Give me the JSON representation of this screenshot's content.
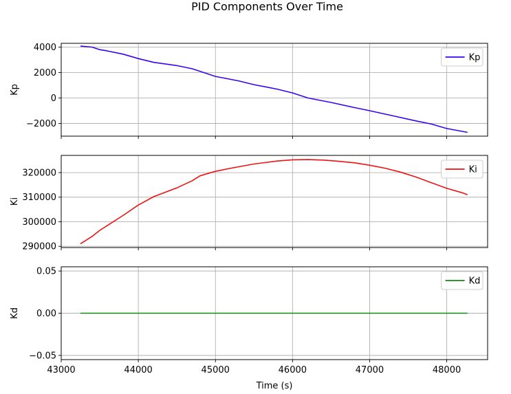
{
  "title": "PID Components Over Time",
  "chart_data": {
    "type": "line",
    "title": "PID Components Over Time",
    "xlabel": "Time (s)",
    "xlim": [
      43000,
      48530
    ],
    "xticks": [
      43000,
      44000,
      45000,
      46000,
      47000,
      48000
    ],
    "grid": true,
    "sharex": true,
    "subplots": [
      {
        "id": "kp",
        "ylabel": "Kp",
        "ylim": [
          -3000,
          4300
        ],
        "yticks": [
          -2000,
          0,
          2000,
          4000
        ],
        "ytick_labels": [
          "−2000",
          "0",
          "2000",
          "4000"
        ],
        "legend_position": "top-right",
        "series": [
          {
            "name": "Kp",
            "color": "#3a00f0",
            "x": [
              43250,
              43400,
              43500,
              43600,
              43800,
              44000,
              44200,
              44500,
              44700,
              45000,
              45300,
              45500,
              45800,
              46000,
              46200,
              46500,
              46800,
              47000,
              47300,
              47600,
              47800,
              48000,
              48270
            ],
            "y": [
              4080,
              4000,
              3800,
              3700,
              3450,
              3100,
              2800,
              2550,
              2300,
              1700,
              1350,
              1050,
              700,
              400,
              0,
              -350,
              -750,
              -1000,
              -1400,
              -1800,
              -2050,
              -2400,
              -2700
            ]
          }
        ]
      },
      {
        "id": "ki",
        "ylabel": "Ki",
        "ylim": [
          289500,
          327000
        ],
        "yticks": [
          290000,
          300000,
          310000,
          320000
        ],
        "ytick_labels": [
          "290000",
          "300000",
          "310000",
          "320000"
        ],
        "legend_position": "top-right",
        "series": [
          {
            "name": "Ki",
            "color": "#ee1111",
            "x": [
              43250,
              43400,
              43500,
              43600,
              43800,
              44000,
              44200,
              44500,
              44700,
              44800,
              45000,
              45200,
              45500,
              45800,
              46000,
              46200,
              46400,
              46600,
              46800,
              47000,
              47200,
              47400,
              47600,
              47800,
              48000,
              48200,
              48270
            ],
            "y": [
              291000,
              294000,
              296500,
              298500,
              302500,
              306800,
              310200,
              313800,
              316700,
              318700,
              320500,
              321800,
              323500,
              324700,
              325200,
              325300,
              325100,
              324600,
              324000,
              323000,
              321800,
              320200,
              318200,
              315900,
              313600,
              311800,
              311000
            ]
          }
        ]
      },
      {
        "id": "kd",
        "ylabel": "Kd",
        "ylim": [
          -0.055,
          0.055
        ],
        "yticks": [
          -0.05,
          0.0,
          0.05
        ],
        "ytick_labels": [
          "−0.05",
          "0.00",
          "0.05"
        ],
        "legend_position": "top-right",
        "series": [
          {
            "name": "Kd",
            "color": "#118811",
            "x": [
              43250,
              48270
            ],
            "y": [
              0,
              0
            ]
          }
        ]
      }
    ]
  }
}
